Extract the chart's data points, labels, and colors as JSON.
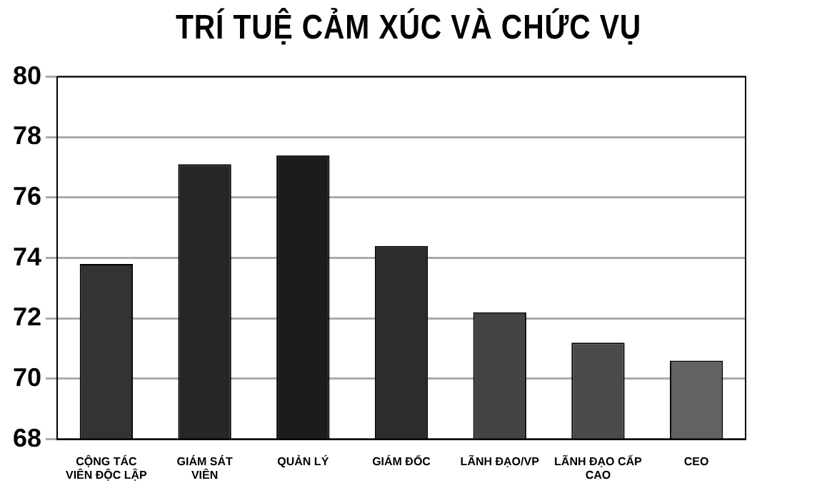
{
  "chart_data": {
    "type": "bar",
    "title": "TRÍ TUỆ CẢM XÚC VÀ CHỨC VỤ",
    "categories": [
      "CỘNG TÁC VIÊN ĐỘC LẬP",
      "GIÁM SÁT VIÊN",
      "QUẢN LÝ",
      "GIÁM ĐỐC",
      "LÃNH ĐẠO/VP",
      "LÃNH ĐẠO CẤP CAO",
      "CEO"
    ],
    "values": [
      73.8,
      77.1,
      77.4,
      74.4,
      72.2,
      71.2,
      70.6
    ],
    "colors": [
      "#333333",
      "#262626",
      "#1c1c1c",
      "#2c2c2c",
      "#444444",
      "#4a4a4a",
      "#626262"
    ],
    "ylim": [
      68,
      80
    ],
    "yticks": [
      68,
      70,
      72,
      74,
      76,
      78,
      80
    ],
    "grid": "y"
  }
}
